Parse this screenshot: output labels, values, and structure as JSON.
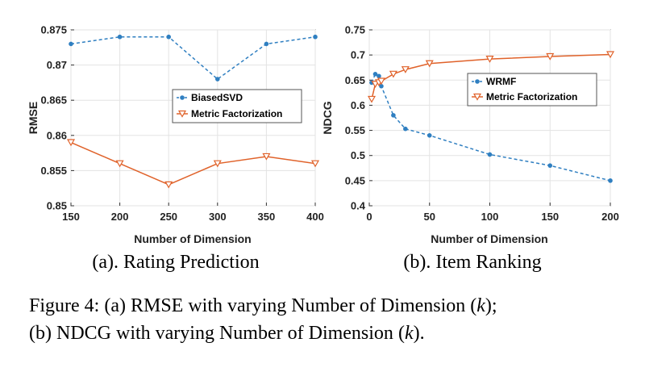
{
  "chart_data": [
    {
      "id": "a",
      "type": "line",
      "subtitle": "(a). Rating Prediction",
      "xlabel": "Number of Dimension",
      "ylabel": "RMSE",
      "xlim": [
        150,
        400
      ],
      "ylim": [
        0.85,
        0.875
      ],
      "xticks": [
        "150",
        "200",
        "250",
        "300",
        "350",
        "400"
      ],
      "xtick_values": [
        150,
        200,
        250,
        300,
        350,
        400
      ],
      "yticks": [
        "0.85",
        "0.855",
        "0.86",
        "0.865",
        "0.87",
        "0.875"
      ],
      "ytick_values": [
        0.85,
        0.855,
        0.86,
        0.865,
        0.87,
        0.875
      ],
      "legend_position": "center-right",
      "series": [
        {
          "name": "BiasedSVD",
          "color": "#2f7fc1",
          "style": "dashed",
          "marker": "dot",
          "x": [
            150,
            200,
            250,
            300,
            350,
            400
          ],
          "values": [
            0.873,
            0.874,
            0.874,
            0.868,
            0.873,
            0.874
          ]
        },
        {
          "name": "Metric Factorization",
          "color": "#e0622a",
          "style": "solid",
          "marker": "triangle-down",
          "x": [
            150,
            200,
            250,
            300,
            350,
            400
          ],
          "values": [
            0.859,
            0.856,
            0.853,
            0.856,
            0.857,
            0.856
          ]
        }
      ]
    },
    {
      "id": "b",
      "type": "line",
      "subtitle": "(b). Item Ranking",
      "xlabel": "Number of Dimension",
      "ylabel": "NDCG",
      "xlim": [
        0,
        200
      ],
      "ylim": [
        0.4,
        0.75
      ],
      "xticks": [
        "0",
        "50",
        "100",
        "150",
        "200"
      ],
      "xtick_values": [
        0,
        50,
        100,
        150,
        200
      ],
      "yticks": [
        "0.4",
        "0.45",
        "0.5",
        "0.55",
        "0.6",
        "0.65",
        "0.7",
        "0.75"
      ],
      "ytick_values": [
        0.4,
        0.45,
        0.5,
        0.55,
        0.6,
        0.65,
        0.7,
        0.75
      ],
      "legend_position": "center-right",
      "series": [
        {
          "name": "WRMF",
          "color": "#2f7fc1",
          "style": "dashed",
          "marker": "dot",
          "x": [
            2,
            5,
            8,
            10,
            20,
            30,
            50,
            100,
            150,
            200
          ],
          "values": [
            0.645,
            0.662,
            0.658,
            0.638,
            0.58,
            0.553,
            0.54,
            0.502,
            0.48,
            0.45
          ]
        },
        {
          "name": "Metric Factorization",
          "color": "#e0622a",
          "style": "solid",
          "marker": "triangle-down",
          "x": [
            2,
            5,
            8,
            10,
            20,
            30,
            50,
            100,
            150,
            200
          ],
          "values": [
            0.612,
            0.642,
            0.645,
            0.648,
            0.662,
            0.671,
            0.683,
            0.692,
            0.697,
            0.701
          ]
        }
      ]
    }
  ],
  "caption": {
    "line1": "Figure 4: (a) RMSE with varying Number of Dimension (k);",
    "line2": "(b) NDCG with varying Number of Dimension (k)."
  }
}
